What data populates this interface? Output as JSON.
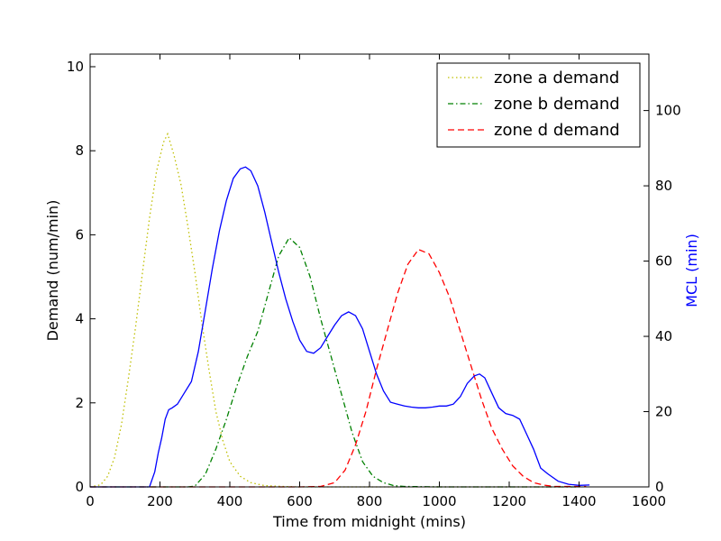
{
  "chart_data": {
    "type": "line",
    "xlabel": "Time from midnight (mins)",
    "ylabel": "Demand (num/min)",
    "y2label": "MCL (min)",
    "xlim": [
      0,
      1600
    ],
    "ylim": [
      0,
      10.3
    ],
    "y2lim": [
      0,
      115
    ],
    "xticks": [
      0,
      200,
      400,
      600,
      800,
      1000,
      1200,
      1400,
      1600
    ],
    "yticks": [
      0,
      2,
      4,
      6,
      8,
      10
    ],
    "y2ticks": [
      0,
      20,
      40,
      60,
      80,
      100
    ],
    "grid": false,
    "legend_position": "top-right",
    "colors": {
      "zone_a": "#bfbf00",
      "zone_b": "#008000",
      "zone_d": "#ff0000",
      "mcl": "#0000ff",
      "axis": "#000000"
    },
    "series": [
      {
        "name": "zone a demand",
        "axis": "left",
        "linestyle": "dotted",
        "color": "#bfbf00",
        "x": [
          0,
          30,
          50,
          70,
          90,
          110,
          130,
          150,
          170,
          190,
          210,
          222,
          240,
          260,
          280,
          300,
          320,
          340,
          360,
          380,
          400,
          430,
          460,
          500,
          550,
          600,
          700,
          1000,
          1400
        ],
        "y": [
          0,
          0.05,
          0.25,
          0.7,
          1.5,
          2.6,
          3.8,
          5.1,
          6.4,
          7.5,
          8.2,
          8.4,
          7.9,
          7.2,
          6.2,
          5.1,
          3.9,
          2.8,
          1.8,
          1.1,
          0.6,
          0.25,
          0.1,
          0.03,
          0.01,
          0,
          0,
          0,
          0
        ]
      },
      {
        "name": "zone b demand",
        "axis": "left",
        "linestyle": "dashdot",
        "color": "#008000",
        "x": [
          0,
          280,
          300,
          330,
          360,
          390,
          420,
          450,
          480,
          510,
          540,
          570,
          600,
          630,
          660,
          690,
          720,
          750,
          780,
          810,
          840,
          870,
          900,
          1000,
          1400
        ],
        "y": [
          0,
          0,
          0.02,
          0.3,
          0.9,
          1.6,
          2.4,
          3.1,
          3.7,
          4.6,
          5.5,
          5.93,
          5.7,
          5.0,
          4.0,
          3.1,
          2.2,
          1.3,
          0.6,
          0.25,
          0.1,
          0.03,
          0.01,
          0,
          0
        ]
      },
      {
        "name": "zone d demand",
        "axis": "left",
        "linestyle": "dashed",
        "color": "#ff0000",
        "x": [
          0,
          600,
          660,
          700,
          730,
          760,
          790,
          820,
          850,
          880,
          910,
          940,
          970,
          1000,
          1030,
          1060,
          1090,
          1120,
          1150,
          1180,
          1210,
          1240,
          1270,
          1300,
          1330,
          1360,
          1400,
          1420
        ],
        "y": [
          0,
          0,
          0.01,
          0.1,
          0.4,
          1.0,
          1.8,
          2.8,
          3.7,
          4.6,
          5.3,
          5.65,
          5.55,
          5.1,
          4.5,
          3.7,
          2.9,
          2.1,
          1.4,
          0.9,
          0.5,
          0.25,
          0.1,
          0.04,
          0.01,
          0.01,
          0.01,
          0.01
        ]
      },
      {
        "name": "",
        "axis": "right",
        "linestyle": "solid",
        "color": "#0000ff",
        "x": [
          0,
          170,
          185,
          195,
          205,
          215,
          225,
          235,
          250,
          270,
          290,
          310,
          330,
          350,
          370,
          390,
          410,
          430,
          445,
          460,
          480,
          500,
          520,
          540,
          560,
          580,
          600,
          620,
          640,
          660,
          680,
          700,
          720,
          740,
          760,
          780,
          800,
          820,
          840,
          860,
          880,
          900,
          920,
          940,
          960,
          980,
          1000,
          1020,
          1040,
          1060,
          1080,
          1100,
          1115,
          1130,
          1150,
          1170,
          1190,
          1210,
          1230,
          1250,
          1270,
          1290,
          1310,
          1340,
          1370,
          1400,
          1430
        ],
        "y": [
          0,
          0,
          4,
          9,
          13,
          18,
          20.5,
          21,
          22,
          25,
          28,
          36,
          47,
          58,
          68,
          76,
          82,
          84.5,
          85,
          84,
          80,
          73,
          65,
          57,
          50,
          44,
          39,
          36,
          35.5,
          37,
          40,
          43,
          45.5,
          46.5,
          45.5,
          42,
          36,
          30,
          25.5,
          22.5,
          22,
          21.5,
          21.2,
          21,
          21,
          21.2,
          21.5,
          21.5,
          22,
          24,
          27.5,
          29.5,
          30,
          29,
          25,
          21,
          19.5,
          19,
          18,
          14,
          10,
          5,
          3.5,
          1.5,
          0.7,
          0.4,
          0.5
        ]
      }
    ]
  }
}
